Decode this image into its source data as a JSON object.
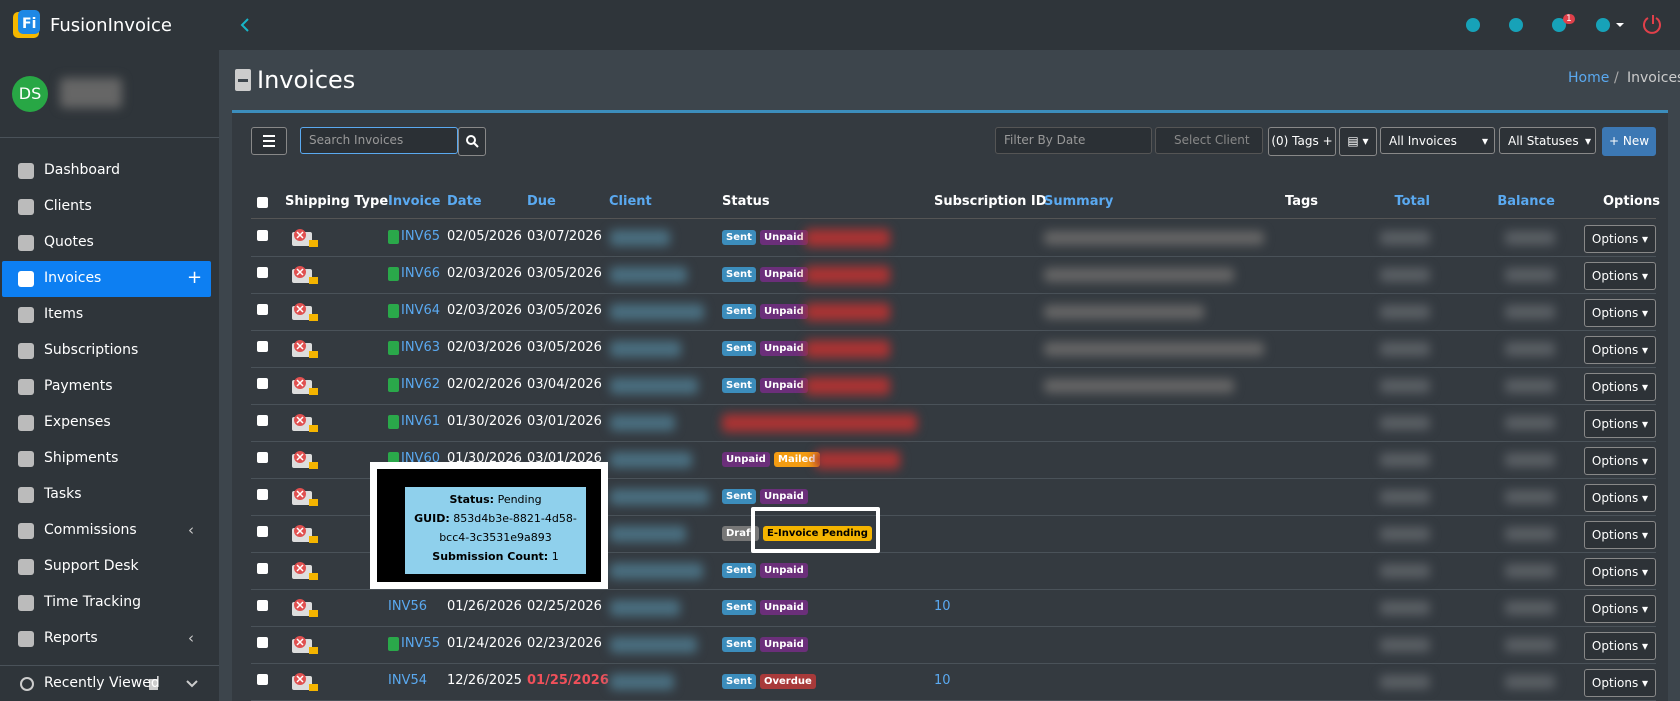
{
  "brand": "FusionInvoice",
  "user_initials": "DS",
  "nav": [
    "Dashboard",
    "Clients",
    "Quotes",
    "Invoices",
    "Items",
    "Subscriptions",
    "Payments",
    "Expenses",
    "Shipments",
    "Tasks",
    "Commissions",
    "Support Desk",
    "Time Tracking",
    "Reports"
  ],
  "active_nav": 3,
  "recently_viewed": "Recently Viewed",
  "notification_count": "1",
  "page_title": "Invoices",
  "breadcrumb": [
    "Home",
    "Invoices"
  ],
  "toolbar": {
    "search_placeholder": "Search Invoices",
    "date_placeholder": "Filter By Date",
    "client_placeholder": "Select Client",
    "tags": "(0) Tags",
    "invoice_filter": "All Invoices",
    "status_filter": "All Statuses",
    "new": "New"
  },
  "table": {
    "columns": [
      "Shipping Type",
      "Invoice",
      "Date",
      "Due",
      "Client",
      "Status",
      "Subscription ID",
      "Summary",
      "Tags",
      "Total",
      "Balance",
      "Options"
    ],
    "row_action": "Options",
    "rows": [
      {
        "invoice": "INV65",
        "icon": true,
        "date": "02/05/2026",
        "due": "03/07/2026",
        "statuses": [
          "Sent",
          "Unpaid"
        ]
      },
      {
        "invoice": "INV66",
        "icon": true,
        "date": "02/03/2026",
        "due": "03/05/2026",
        "statuses": [
          "Sent",
          "Unpaid"
        ]
      },
      {
        "invoice": "INV64",
        "icon": true,
        "date": "02/03/2026",
        "due": "03/05/2026",
        "statuses": [
          "Sent",
          "Unpaid"
        ]
      },
      {
        "invoice": "INV63",
        "icon": true,
        "date": "02/03/2026",
        "due": "03/05/2026",
        "statuses": [
          "Sent",
          "Unpaid"
        ]
      },
      {
        "invoice": "INV62",
        "icon": true,
        "date": "02/02/2026",
        "due": "03/04/2026",
        "statuses": [
          "Sent",
          "Unpaid"
        ]
      },
      {
        "invoice": "INV61",
        "icon": true,
        "date": "01/30/2026",
        "due": "03/01/2026"
      },
      {
        "invoice": "INV60",
        "icon": true,
        "date": "01/30/2026",
        "due": "03/01/2026",
        "statuses": [
          "Unpaid",
          "Mailed"
        ]
      },
      {
        "icon": true,
        "statuses": [
          "Sent",
          "Unpaid"
        ]
      },
      {
        "icon": true,
        "statuses": [
          "Draft",
          "E-Invoice Pending"
        ]
      },
      {
        "icon": true,
        "statuses": [
          "Sent",
          "Unpaid"
        ]
      },
      {
        "invoice": "INV56",
        "icon": false,
        "date": "01/26/2026",
        "due": "02/25/2026",
        "statuses": [
          "Sent",
          "Unpaid"
        ],
        "subscription": "10"
      },
      {
        "invoice": "INV55",
        "icon": true,
        "date": "01/24/2026",
        "due": "02/23/2026",
        "statuses": [
          "Sent",
          "Unpaid"
        ]
      },
      {
        "invoice": "INV54",
        "icon": false,
        "date": "12/26/2025",
        "due": "01/25/2026",
        "overdue": true,
        "statuses": [
          "Sent",
          "Overdue"
        ],
        "subscription": "10"
      }
    ]
  },
  "tooltip": {
    "status_label": "Status:",
    "status": "Pending",
    "guid_label": "GUID:",
    "guid": "853d4b3e-8821-4d58-bcc4-3c3531e9a893",
    "count_label": "Submission Count:",
    "count": "1"
  }
}
